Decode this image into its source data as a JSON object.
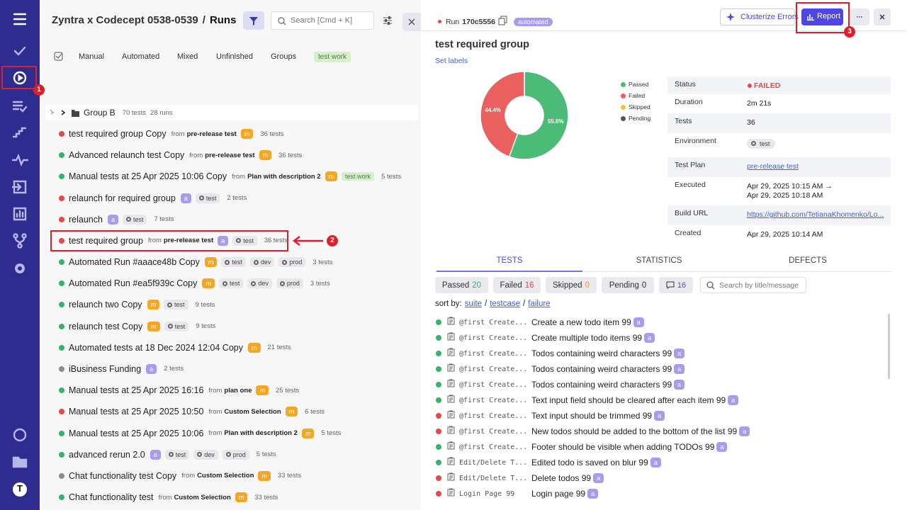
{
  "sidebar": {
    "avatar": "T"
  },
  "annotations": [
    "1",
    "2",
    "3"
  ],
  "header": {
    "project": "Zyntra x Codecept 0538-0539",
    "separator": "/",
    "page": "Runs",
    "search_placeholder": "Search [Cmd + K]"
  },
  "tabs": [
    "Manual",
    "Automated",
    "Mixed",
    "Unfinished",
    "Groups",
    "test work"
  ],
  "group": {
    "name": "Group B",
    "tests": "70 tests",
    "runs": "28 runs"
  },
  "from_prefix": "from",
  "status_colors": {
    "passed": "#34b36a",
    "failed": "#e5484d",
    "mixed": "#8a8a95"
  },
  "runs": [
    {
      "status": "failed",
      "title": "test required group Copy",
      "from": "pre-release test",
      "badge": "m",
      "tests": "36 tests"
    },
    {
      "status": "passed",
      "title": "Advanced relaunch test Copy",
      "from": "pre-release test",
      "badge": "m",
      "tests": "36 tests"
    },
    {
      "status": "passed",
      "title": "Manual tests at 25 Apr 2025 10:06 Copy",
      "from": "Plan with description 2",
      "badge": "m",
      "tag": "test work",
      "tests": "5 tests"
    },
    {
      "status": "failed",
      "title": "relaunch for required group",
      "badge": "a",
      "envs": [
        "test"
      ],
      "tests": "2 tests"
    },
    {
      "status": "failed",
      "title": "relaunch",
      "badge": "a",
      "envs": [
        "test"
      ],
      "tests": "7 tests"
    },
    {
      "status": "failed",
      "title": "test required group",
      "from": "pre-release test",
      "badge": "a",
      "envs": [
        "test"
      ],
      "tests": "36 tests"
    },
    {
      "status": "passed",
      "title": "Automated Run #aaace48b Copy",
      "badge": "m",
      "envs": [
        "test",
        "dev",
        "prod"
      ],
      "tests": "3 tests"
    },
    {
      "status": "passed",
      "title": "Automated Run #ea5f939c Copy",
      "badge": "m",
      "envs": [
        "test",
        "dev",
        "prod"
      ],
      "tests": "3 tests"
    },
    {
      "status": "passed",
      "title": "relaunch two Copy",
      "badge": "m",
      "envs": [
        "test"
      ],
      "tests": "9 tests"
    },
    {
      "status": "passed",
      "title": "relaunch test Copy",
      "badge": "m",
      "envs": [
        "test"
      ],
      "tests": "9 tests"
    },
    {
      "status": "passed",
      "title": "Automated tests at 18 Dec 2024 12:04 Copy",
      "badge": "m",
      "tests": "21 tests"
    },
    {
      "status": "mixed",
      "title": "iBusiness Funding",
      "badge": "a",
      "tests": "2 tests"
    },
    {
      "status": "passed",
      "title": "Manual tests at 25 Apr 2025 16:16",
      "from": "plan one",
      "badge": "m",
      "tests": "25 tests"
    },
    {
      "status": "failed",
      "title": "Manual tests at 25 Apr 2025 10:50",
      "from": "Custom Selection",
      "badge": "m",
      "tests": "6 tests"
    },
    {
      "status": "passed",
      "title": "Manual tests at 25 Apr 2025 10:06",
      "from": "Plan with description 2",
      "badge": "m",
      "tests": "5 tests"
    },
    {
      "status": "passed",
      "title": "advanced rerun 2.0",
      "badge": "a",
      "envs": [
        "test",
        "dev",
        "prod"
      ],
      "tests": "5 tests"
    },
    {
      "status": "mixed",
      "title": "Chat functionality test Copy",
      "from": "Custom Selection",
      "badge": "m",
      "tests": "33 tests"
    },
    {
      "status": "passed",
      "title": "Chat functionality test",
      "from": "Custom Selection",
      "badge": "m",
      "tests": "33 tests"
    }
  ],
  "run_detail": {
    "run_label": "Run",
    "run_id": "170c5556",
    "run_tag": "automated",
    "buttons": {
      "clusterize": "Clusterize Errors",
      "report": "Report",
      "more": "···"
    },
    "title": "test required group",
    "set_labels": "Set labels",
    "details": [
      {
        "label": "Status",
        "value": "FAILED"
      },
      {
        "label": "Duration",
        "value": "2m 21s"
      },
      {
        "label": "Tests",
        "value": "36"
      },
      {
        "label": "Environment",
        "value": "test"
      },
      {
        "label": "Test Plan",
        "value": "pre-release test"
      },
      {
        "label": "Executed",
        "value": "Apr 29, 2025 10:15 AM →",
        "value2": "Apr 29, 2025 10:18 AM"
      },
      {
        "label": "Build URL",
        "value": "https://github.com/TetianaKhomenko/Lo..."
      },
      {
        "label": "Created",
        "value": "Apr 29, 2025 10:14 AM"
      }
    ],
    "tabs": [
      "TESTS",
      "STATISTICS",
      "DEFECTS"
    ],
    "filters": [
      {
        "label": "Passed",
        "count": 20,
        "color": "#34b36a"
      },
      {
        "label": "Failed",
        "count": 16,
        "color": "#e5484d"
      },
      {
        "label": "Skipped",
        "count": 0,
        "color": "#f0a020"
      },
      {
        "label": "Pending",
        "count": 0,
        "color": "#333333"
      }
    ],
    "comments": 16,
    "search_placeholder": "Search by title/message",
    "sort": [
      "sort by:",
      "suite",
      "/",
      "testcase",
      "/",
      "failure"
    ],
    "tests": [
      {
        "status": "passed",
        "suite": "@first Create...",
        "title": "Create a new todo item 99",
        "badge": "a"
      },
      {
        "status": "passed",
        "suite": "@first Create...",
        "title": "Create multiple todo items 99",
        "badge": "a"
      },
      {
        "status": "passed",
        "suite": "@first Create...",
        "title": "Todos containing weird characters 99",
        "badge": "a"
      },
      {
        "status": "passed",
        "suite": "@first Create...",
        "title": "Todos containing weird characters 99",
        "badge": "a"
      },
      {
        "status": "passed",
        "suite": "@first Create...",
        "title": "Todos containing weird characters 99",
        "badge": "a"
      },
      {
        "status": "passed",
        "suite": "@first Create...",
        "title": "Text input field should be cleared after each item 99",
        "badge": "a"
      },
      {
        "status": "failed",
        "suite": "@first Create...",
        "title": "Text input should be trimmed 99",
        "badge": "a"
      },
      {
        "status": "failed",
        "suite": "@first Create...",
        "title": "New todos should be added to the bottom of the list 99",
        "badge": "a"
      },
      {
        "status": "passed",
        "suite": "@first Create...",
        "title": "Footer should be visible when adding TODOs 99",
        "badge": "a"
      },
      {
        "status": "passed",
        "suite": "Edit/Delete T...",
        "title": "Edited todo is saved on blur 99",
        "badge": "a"
      },
      {
        "status": "failed",
        "suite": "Edit/Delete T...",
        "title": "Delete todos 99",
        "badge": "a"
      },
      {
        "status": "failed",
        "suite": "Login Page 99",
        "title": "Login page 99",
        "badge": "a"
      }
    ]
  },
  "chart_data": {
    "type": "pie",
    "categories": [
      "Passed",
      "Failed",
      "Skipped",
      "Pending"
    ],
    "values": [
      55.6,
      44.4,
      0,
      0
    ],
    "value_labels": [
      "55.6%",
      "44.4%",
      null,
      null
    ],
    "colors": [
      "#4cbb78",
      "#e9605f",
      "#f0c040",
      "#4b5563"
    ]
  }
}
